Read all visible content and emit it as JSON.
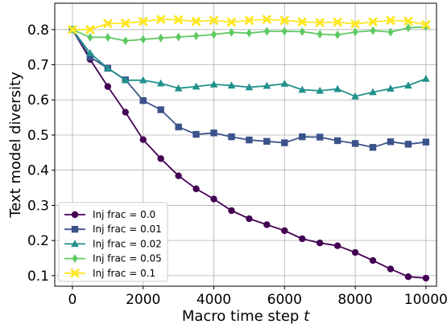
{
  "chart_data": {
    "type": "line",
    "title": "",
    "xlabel": "Macro time step",
    "xlabel_var": "t",
    "ylabel": "Text model diversity",
    "xlim": [
      -500,
      10300
    ],
    "ylim": [
      0.07,
      0.875
    ],
    "xticks": [
      0,
      2000,
      4000,
      6000,
      8000,
      10000
    ],
    "xtick_labels": [
      "0",
      "2000",
      "4000",
      "6000",
      "8000",
      "10000"
    ],
    "yticks": [
      0.1,
      0.2,
      0.3,
      0.4,
      0.5,
      0.6,
      0.7,
      0.8
    ],
    "ytick_labels": [
      "0.1",
      "0.2",
      "0.3",
      "0.4",
      "0.5",
      "0.6",
      "0.7",
      "0.8"
    ],
    "grid": true,
    "legend_position": "lower-left",
    "x": [
      0,
      500,
      1000,
      1500,
      2000,
      2500,
      3000,
      3500,
      4000,
      4500,
      5000,
      5500,
      6000,
      6500,
      7000,
      7500,
      8000,
      8500,
      9000,
      9500,
      10000
    ],
    "series": [
      {
        "name": "Inj frac = 0.0",
        "color": "#440154",
        "marker": "circle",
        "values": [
          0.8,
          0.715,
          0.638,
          0.565,
          0.487,
          0.433,
          0.384,
          0.347,
          0.318,
          0.285,
          0.262,
          0.245,
          0.228,
          0.205,
          0.193,
          0.185,
          0.166,
          0.143,
          0.119,
          0.097,
          0.093
        ]
      },
      {
        "name": "Inj frac = 0.01",
        "color": "#3b528b",
        "marker": "square",
        "values": [
          0.8,
          0.722,
          0.69,
          0.657,
          0.598,
          0.572,
          0.523,
          0.502,
          0.506,
          0.495,
          0.486,
          0.482,
          0.478,
          0.495,
          0.494,
          0.484,
          0.476,
          0.465,
          0.481,
          0.474,
          0.48
        ]
      },
      {
        "name": "Inj frac = 0.02",
        "color": "#21918c",
        "marker": "triangle",
        "values": [
          0.8,
          0.733,
          0.69,
          0.656,
          0.656,
          0.647,
          0.633,
          0.638,
          0.644,
          0.641,
          0.636,
          0.64,
          0.646,
          0.629,
          0.626,
          0.631,
          0.61,
          0.622,
          0.632,
          0.641,
          0.66
        ]
      },
      {
        "name": "Inj frac = 0.05",
        "color": "#5ec962",
        "marker": "diamond",
        "values": [
          0.8,
          0.778,
          0.778,
          0.768,
          0.772,
          0.776,
          0.779,
          0.782,
          0.786,
          0.792,
          0.79,
          0.795,
          0.795,
          0.794,
          0.787,
          0.785,
          0.793,
          0.797,
          0.793,
          0.805,
          0.808
        ]
      },
      {
        "name": "Inj frac = 0.1",
        "color": "#fde725",
        "marker": "x",
        "values": [
          0.8,
          0.8,
          0.817,
          0.818,
          0.823,
          0.829,
          0.828,
          0.823,
          0.826,
          0.821,
          0.826,
          0.829,
          0.826,
          0.822,
          0.82,
          0.821,
          0.816,
          0.822,
          0.826,
          0.824,
          0.814
        ]
      }
    ]
  }
}
